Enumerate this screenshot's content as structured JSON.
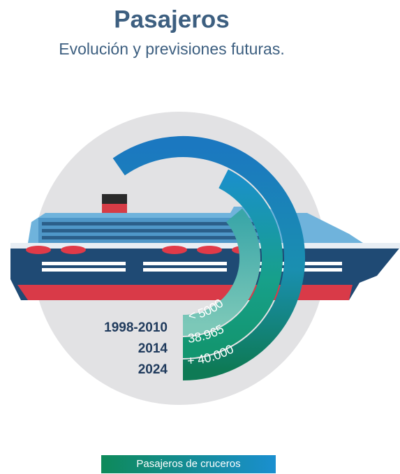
{
  "header": {
    "title": "Pasajeros",
    "subtitle": "Evolución y previsiones futuras."
  },
  "rows": [
    {
      "period": "1998-2010",
      "value": "< 5000"
    },
    {
      "period": "2014",
      "value": "38.965"
    },
    {
      "period": "2024",
      "value": "+ 40.000"
    }
  ],
  "legend": "Pasajeros de cruceros"
}
